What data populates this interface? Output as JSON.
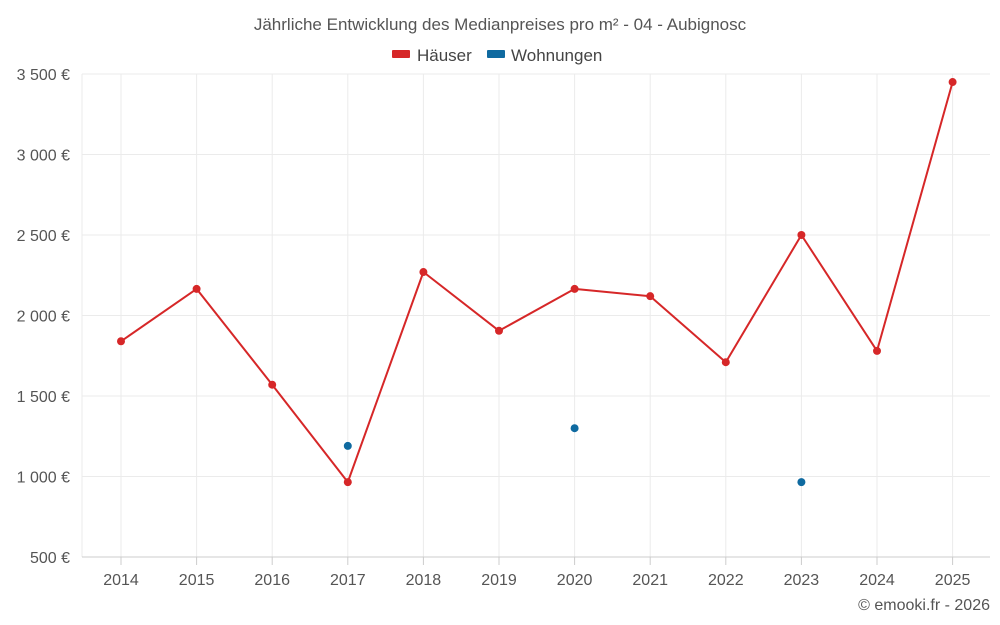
{
  "chart_data": {
    "type": "line",
    "title": "Jährliche Entwicklung des Medianpreises pro m² - 04 - Aubignosc",
    "xlabel": "",
    "ylabel": "",
    "categories": [
      "2014",
      "2015",
      "2016",
      "2017",
      "2018",
      "2019",
      "2020",
      "2021",
      "2022",
      "2023",
      "2024",
      "2025"
    ],
    "ylim": [
      500,
      3500
    ],
    "yticks": [
      500,
      1000,
      1500,
      2000,
      2500,
      3000,
      3500
    ],
    "ytick_labels": [
      "500 €",
      "1 000 €",
      "1 500 €",
      "2 000 €",
      "2 500 €",
      "3 000 €",
      "3 500 €"
    ],
    "grid": true,
    "legend_position": "top-center",
    "series": [
      {
        "name": "Häuser",
        "color": "#d62728",
        "style": "line-markers",
        "values": [
          1840,
          2165,
          1570,
          965,
          2270,
          1905,
          2165,
          2120,
          1710,
          2500,
          1780,
          3450
        ]
      },
      {
        "name": "Wohnungen",
        "color": "#0f6aa0",
        "style": "markers",
        "values": [
          null,
          null,
          null,
          1190,
          null,
          null,
          1300,
          null,
          null,
          965,
          null,
          null
        ]
      }
    ]
  },
  "credit": "© emooki.fr - 2026"
}
